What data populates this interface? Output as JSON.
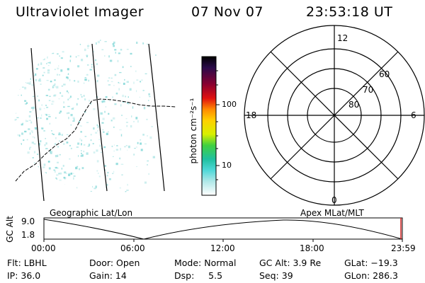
{
  "header": {
    "instrument": "Ultraviolet Imager",
    "date": "07 Nov 07",
    "time": "23:53:18 UT"
  },
  "colorbar": {
    "unit_label": "photon cm⁻²s⁻¹",
    "ticks": [
      "100",
      "10"
    ]
  },
  "polar_plot": {
    "mlt_labels": {
      "top": "12",
      "left": "18",
      "right": "6",
      "bottom": "0"
    },
    "lat_labels": [
      "60",
      "70",
      "80"
    ]
  },
  "panel_labels": {
    "left": "Geographic Lat/Lon",
    "right": "Apex MLat/MLT"
  },
  "altitude_plot": {
    "axis_label": "GC Alt",
    "y_ticks": [
      "9.0",
      "1.8"
    ],
    "x_ticks": [
      "00:00",
      "06:00",
      "12:00",
      "18:00",
      "23:59"
    ]
  },
  "info": {
    "row1": [
      {
        "key": "flt",
        "text": "Flt: LBHL"
      },
      {
        "key": "door",
        "text": "Door: Open"
      },
      {
        "key": "mode",
        "text": "Mode: Normal"
      },
      {
        "key": "gcalt",
        "text": "GC Alt: 3.9 Re"
      },
      {
        "key": "glat",
        "text": "GLat: −19.3"
      }
    ],
    "row2": [
      {
        "key": "ip",
        "text": "IP: 36.0"
      },
      {
        "key": "gain",
        "text": "Gain: 14"
      },
      {
        "key": "dsp",
        "text": "Dsp:     5.5"
      },
      {
        "key": "seq",
        "text": "Seq: 39"
      },
      {
        "key": "glon",
        "text": "GLon: 286.3"
      }
    ]
  },
  "colors": {
    "speckle": "#7fd6d6",
    "line": "#000000"
  }
}
